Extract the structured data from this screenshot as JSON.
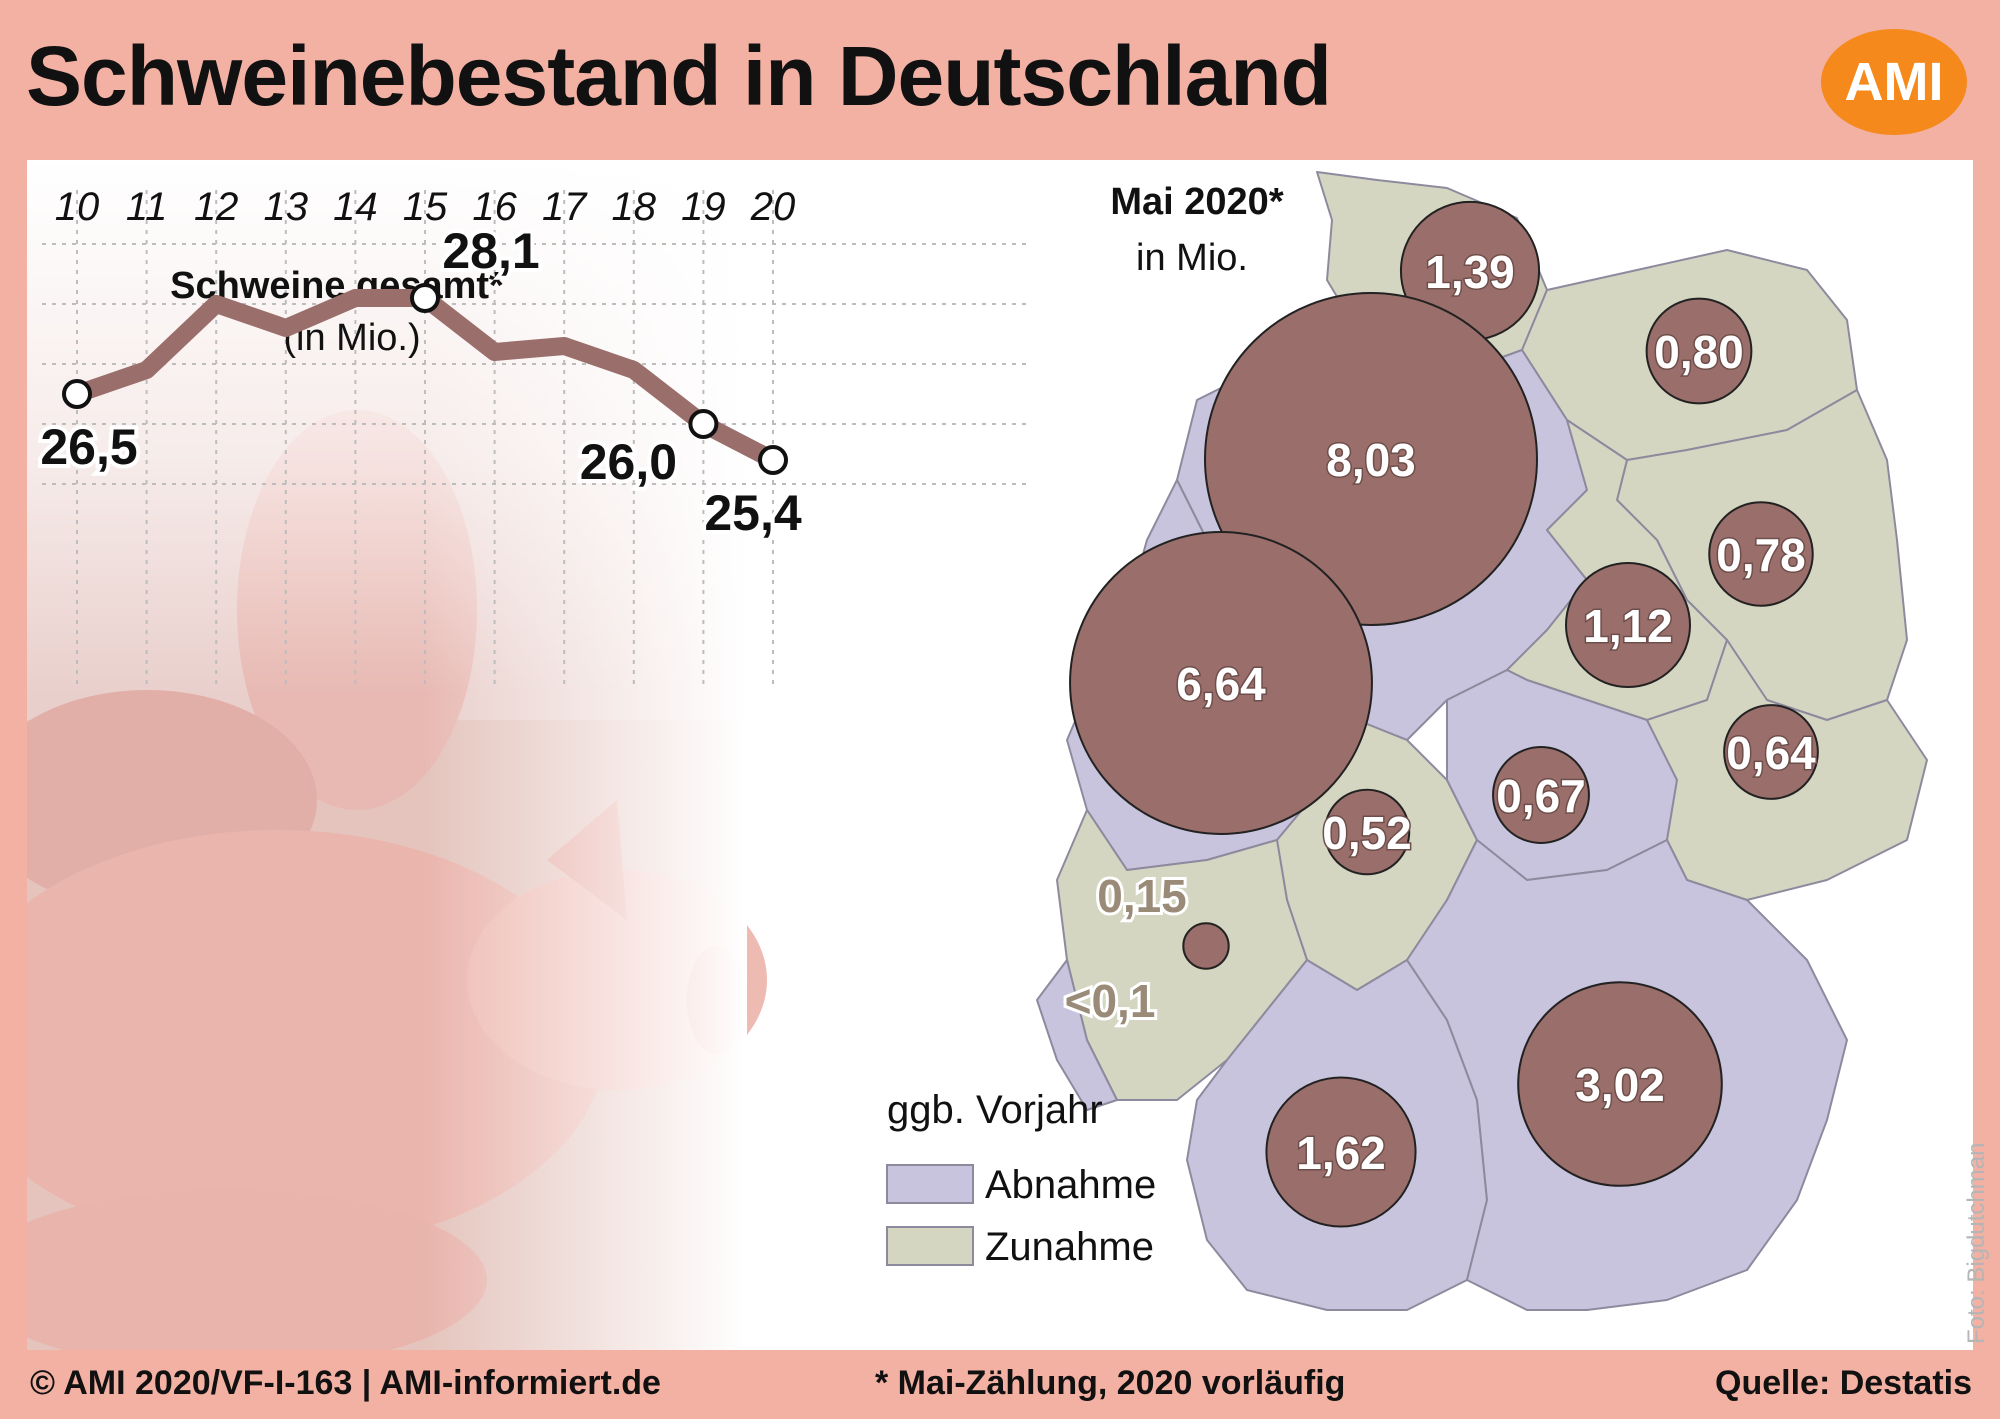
{
  "title": "Schweinebestand in Deutschland",
  "logo": "AMI",
  "colors": {
    "background": "#f3b1a4",
    "line": "#9a6e6a",
    "bubble": "#9a6e6a",
    "decrease": "#c9c4de",
    "increase": "#d5d6c2",
    "logo": "#f5891c"
  },
  "chart_data": [
    {
      "type": "line",
      "title": "Schweine gesamt*",
      "subtitle": "(in Mio.)",
      "x": [
        "10",
        "11",
        "12",
        "13",
        "14",
        "15",
        "16",
        "17",
        "18",
        "19",
        "20"
      ],
      "series": [
        {
          "values": [
            26.5,
            26.9,
            28.0,
            27.6,
            28.1,
            28.1,
            27.2,
            27.3,
            26.9,
            26.0,
            25.4
          ]
        }
      ],
      "ylim": [
        24.0,
        30.0
      ],
      "grid": true,
      "data_labels": [
        {
          "index": 0,
          "text": "26,5"
        },
        {
          "index": 5,
          "text": "28,1"
        },
        {
          "index": 9,
          "text": "26,0"
        },
        {
          "index": 10,
          "text": "25,4"
        }
      ]
    },
    {
      "type": "map",
      "title": "Mai 2020*",
      "subtitle": "in Mio.",
      "unit": "Mio.",
      "bubbles": [
        {
          "region": "Schleswig-Holstein",
          "value": 1.39,
          "label": "1,39"
        },
        {
          "region": "Mecklenburg-Vorpommern",
          "value": 0.8,
          "label": "0,80"
        },
        {
          "region": "Niedersachsen",
          "value": 8.03,
          "label": "8,03"
        },
        {
          "region": "Nordrhein-Westfalen",
          "value": 6.64,
          "label": "6,64"
        },
        {
          "region": "Brandenburg",
          "value": 0.78,
          "label": "0,78"
        },
        {
          "region": "Sachsen-Anhalt",
          "value": 1.12,
          "label": "1,12"
        },
        {
          "region": "Sachsen",
          "value": 0.64,
          "label": "0,64"
        },
        {
          "region": "Thüringen",
          "value": 0.67,
          "label": "0,67"
        },
        {
          "region": "Hessen",
          "value": 0.52,
          "label": "0,52"
        },
        {
          "region": "Rheinland-Pfalz",
          "value": 0.15,
          "label": "0,15"
        },
        {
          "region": "Saarland",
          "value": 0.05,
          "label": "<0,1"
        },
        {
          "region": "Bayern",
          "value": 3.02,
          "label": "3,02"
        },
        {
          "region": "Baden-Württemberg",
          "value": 1.62,
          "label": "1,62"
        }
      ],
      "legend": {
        "title": "ggb. Vorjahr",
        "items": [
          {
            "label": "Abnahme",
            "color": "#c9c4de"
          },
          {
            "label": "Zunahme",
            "color": "#d5d6c2"
          }
        ]
      }
    }
  ],
  "footer": {
    "left": "© AMI 2020/VF-I-163 | AMI-informiert.de",
    "center": "* Mai-Zählung, 2020 vorläufig",
    "right": "Quelle: Destatis"
  },
  "photo_credit": "Foto: Bigdutchman"
}
